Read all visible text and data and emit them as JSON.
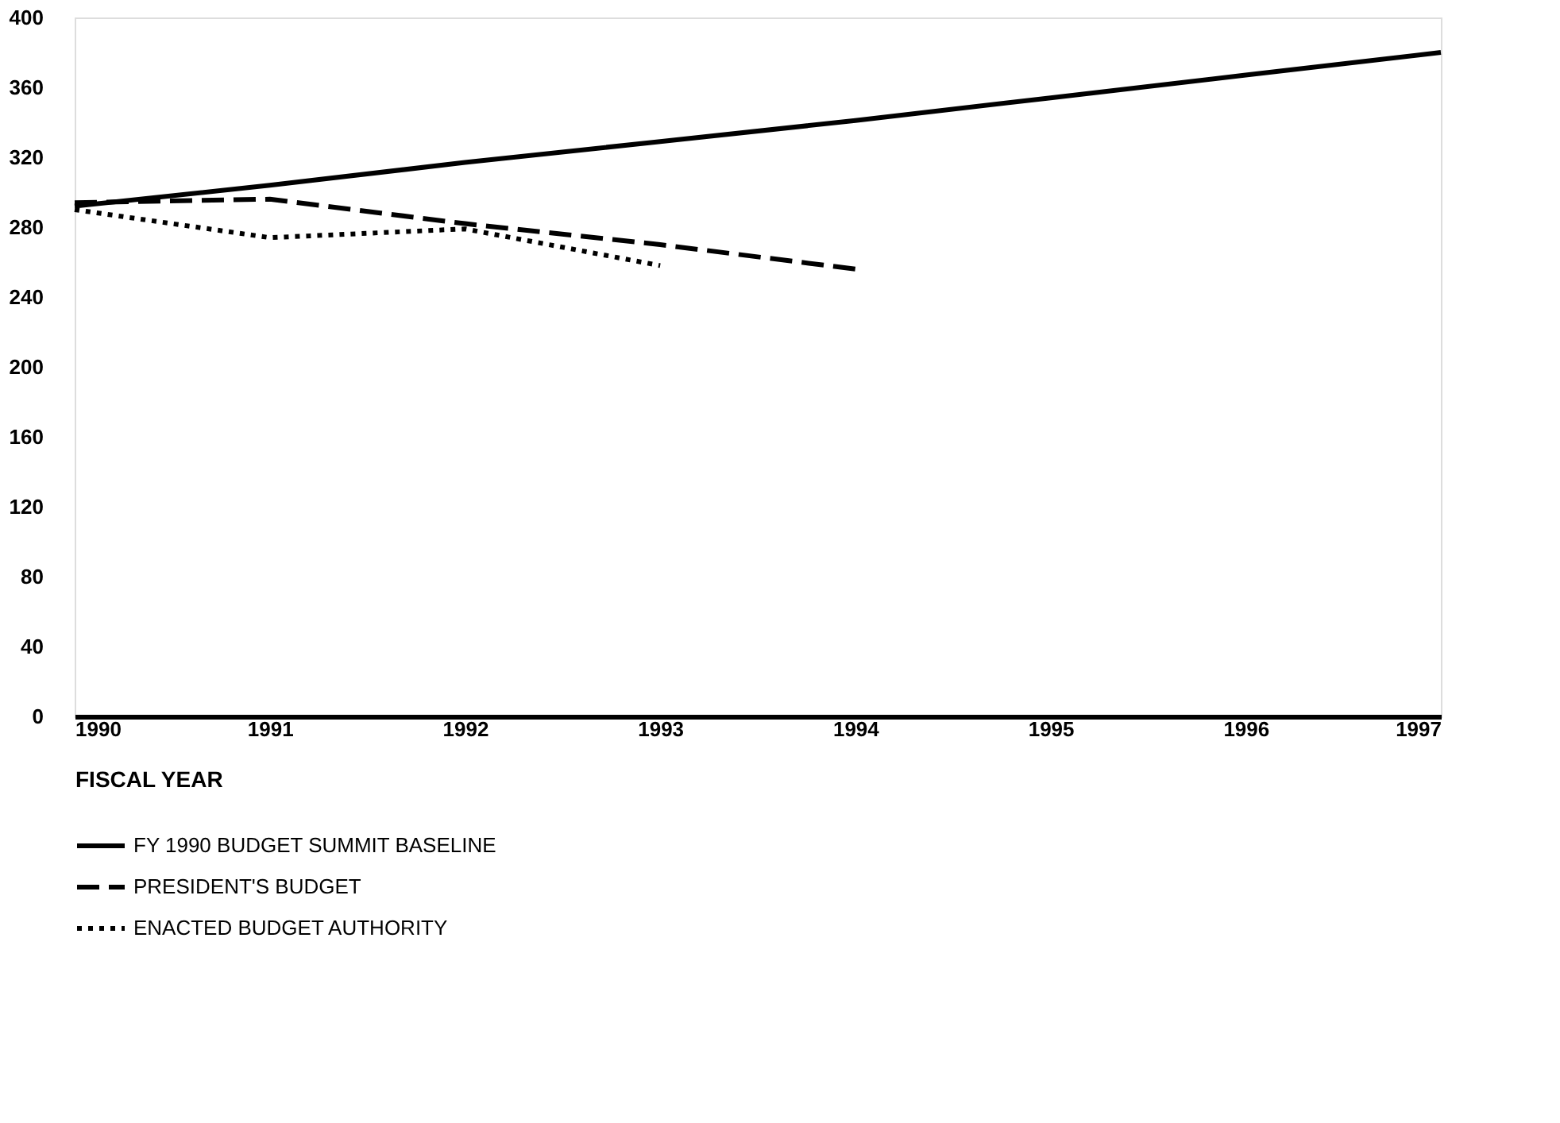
{
  "chart_data": {
    "type": "line",
    "xlabel": "FISCAL YEAR",
    "x": [
      1990,
      1991,
      1992,
      1993,
      1994,
      1995,
      1996,
      1997
    ],
    "series": [
      {
        "name": "FY 1990 BUDGET SUMMIT BASELINE",
        "color": "#000000",
        "line_style": "solid",
        "values": [
          292,
          304,
          317,
          329,
          341,
          354,
          367,
          380
        ]
      },
      {
        "name": "PRESIDENT'S BUDGET",
        "color": "#000000",
        "line_style": "dashed",
        "values": [
          294,
          296,
          282,
          270,
          256,
          null,
          null,
          null
        ]
      },
      {
        "name": "ENACTED BUDGET AUTHORITY",
        "color": "#000000",
        "line_style": "dotted",
        "values": [
          290,
          274,
          279,
          258,
          null,
          null,
          null,
          null
        ]
      }
    ],
    "xlim": [
      1990,
      1997
    ],
    "xticks": [
      1990,
      1991,
      1992,
      1993,
      1994,
      1995,
      1996,
      1997
    ],
    "ylim": [
      0,
      400
    ],
    "yticks": [
      0,
      40,
      80,
      120,
      160,
      200,
      240,
      280,
      320,
      360,
      400
    ],
    "grid": false,
    "legend": "bottom left",
    "marker": "none"
  }
}
